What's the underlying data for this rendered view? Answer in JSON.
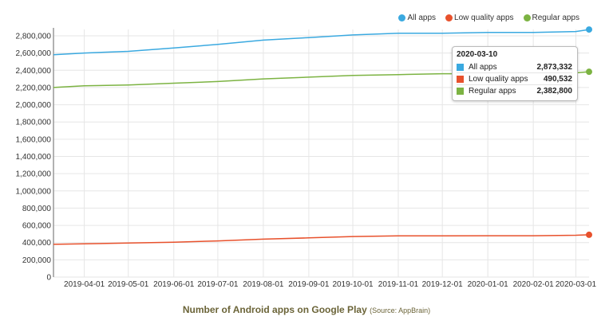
{
  "chart_data": {
    "type": "line",
    "title": "Number of Android apps on Google Play",
    "subtitle": "(Source: AppBrain)",
    "xlabel": "",
    "ylabel": "",
    "ylim": [
      0,
      2800000
    ],
    "yticks": [
      0,
      200000,
      400000,
      600000,
      800000,
      1000000,
      1200000,
      1400000,
      1600000,
      1800000,
      2000000,
      2200000,
      2400000,
      2600000,
      2800000
    ],
    "ytick_labels": [
      "0",
      "200,000",
      "400,000",
      "600,000",
      "800,000",
      "1,000,000",
      "1,200,000",
      "1,400,000",
      "1,600,000",
      "1,800,000",
      "2,000,000",
      "2,200,000",
      "2,400,000",
      "2,600,000",
      "2,800,000"
    ],
    "xlim": [
      "2019-03-11",
      "2020-03-10"
    ],
    "xtick_labels": [
      "2019-04-01",
      "2019-05-01",
      "2019-06-01",
      "2019-07-01",
      "2019-08-01",
      "2019-09-01",
      "2019-10-01",
      "2019-11-01",
      "2019-12-01",
      "2020-01-01",
      "2020-02-01",
      "2020-03-01"
    ],
    "grid": true,
    "legend_position": "top-right",
    "x": [
      "2019-03-11",
      "2019-04-01",
      "2019-05-01",
      "2019-06-01",
      "2019-07-01",
      "2019-08-01",
      "2019-09-01",
      "2019-10-01",
      "2019-11-01",
      "2019-12-01",
      "2020-01-01",
      "2020-02-01",
      "2020-03-01",
      "2020-03-10"
    ],
    "series": [
      {
        "name": "All apps",
        "color": "#3aa9e0",
        "values": [
          2580000,
          2600000,
          2620000,
          2660000,
          2700000,
          2750000,
          2780000,
          2810000,
          2830000,
          2830000,
          2840000,
          2840000,
          2850000,
          2873332
        ]
      },
      {
        "name": "Low quality apps",
        "color": "#e8512c",
        "values": [
          380000,
          385000,
          395000,
          405000,
          420000,
          440000,
          455000,
          470000,
          478000,
          478000,
          480000,
          480000,
          485000,
          490532
        ]
      },
      {
        "name": "Regular apps",
        "color": "#7cb342",
        "values": [
          2200000,
          2220000,
          2230000,
          2250000,
          2270000,
          2300000,
          2320000,
          2340000,
          2350000,
          2360000,
          2360000,
          2370000,
          2370000,
          2382800
        ]
      }
    ],
    "tooltip": {
      "date": "2020-03-10",
      "rows": [
        {
          "label": "All apps",
          "value": "2,873,332",
          "color": "#3aa9e0"
        },
        {
          "label": "Low quality apps",
          "value": "490,532",
          "color": "#e8512c"
        },
        {
          "label": "Regular apps",
          "value": "2,382,800",
          "color": "#7cb342"
        }
      ]
    }
  }
}
